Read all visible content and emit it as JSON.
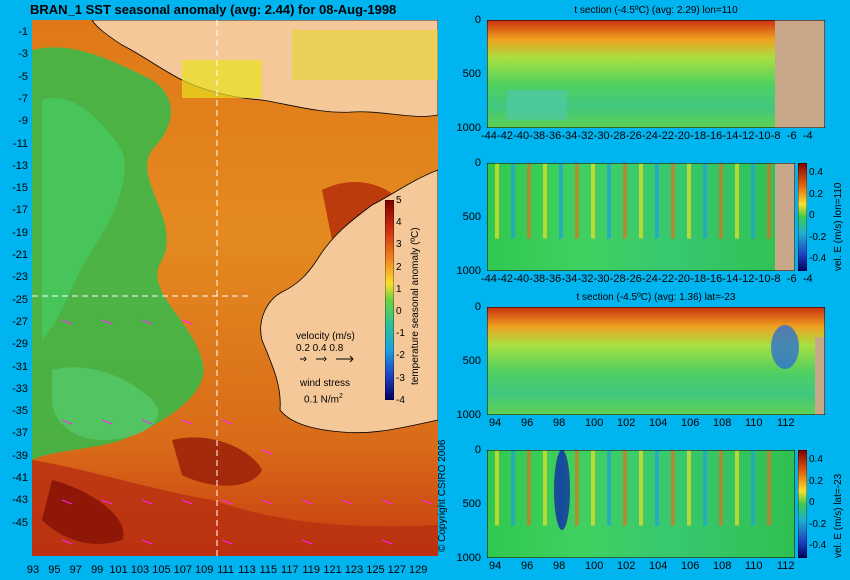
{
  "map": {
    "title": "BRAN_1  SST seasonal anomaly  (avg: 2.44) for 08-Aug-1998",
    "lat_labels": [
      "-1",
      "-3",
      "-5",
      "-7",
      "-9",
      "-11",
      "-13",
      "-15",
      "-17",
      "-19",
      "-21",
      "-23",
      "-25",
      "-27",
      "-29",
      "-31",
      "-33",
      "-35",
      "-37",
      "-39",
      "-41",
      "-43",
      "-45"
    ],
    "lon_labels": [
      "93",
      "95",
      "97",
      "99",
      "101",
      "103",
      "105",
      "107",
      "109",
      "111",
      "113",
      "115",
      "117",
      "119",
      "121",
      "123",
      "125",
      "127",
      "129"
    ],
    "colorbar": {
      "ticks": [
        "5",
        "4",
        "3",
        "2",
        "1",
        "0",
        "-1",
        "-2",
        "-3",
        "-4"
      ],
      "label": "temperature seasonal anomaly (ºC)"
    },
    "legend": {
      "velocity_title": "velocity (m/s)",
      "velocity_values": "0.2 0.4 0.8",
      "wind_title": "wind stress",
      "wind_value": "0.1 N/m",
      "wind_sup": "2"
    },
    "copyright": "© Copyright CSIRO 2006",
    "colors": {
      "land": "#f5c89a",
      "background": "#00b4f0",
      "warm": "#d05a10",
      "cool": "#3cc850"
    }
  },
  "panels": [
    {
      "title": "t section (-4.5ºC) (avg: 2.29) lon=110",
      "y_ticks": [
        "0",
        "500",
        "1000"
      ],
      "x_ticks": [
        "-44",
        "-42",
        "-40",
        "-38",
        "-36",
        "-34",
        "-32",
        "-30",
        "-28",
        "-26",
        "-24",
        "-22",
        "-20",
        "-18",
        "-16",
        "-14",
        "-12",
        "-10",
        "-8",
        "-6",
        "-4"
      ]
    },
    {
      "title": "",
      "y_ticks": [
        "0",
        "500",
        "1000"
      ],
      "x_ticks": [
        "-44",
        "-42",
        "-40",
        "-38",
        "-36",
        "-34",
        "-32",
        "-30",
        "-28",
        "-26",
        "-24",
        "-22",
        "-20",
        "-18",
        "-16",
        "-14",
        "-12",
        "-10",
        "-8",
        "-6",
        "-4"
      ],
      "cbar_ticks": [
        "0.4",
        "0.2",
        "0",
        "-0.2",
        "-0.4"
      ],
      "cbar_label": "vel. E (m/s) lon=110"
    },
    {
      "title": "t section (-4.5ºC) (avg: 1.36) lat=-23",
      "y_ticks": [
        "0",
        "500",
        "1000"
      ],
      "x_ticks": [
        "94",
        "96",
        "98",
        "100",
        "102",
        "104",
        "106",
        "108",
        "110",
        "112"
      ]
    },
    {
      "title": "",
      "y_ticks": [
        "0",
        "500",
        "1000"
      ],
      "x_ticks": [
        "94",
        "96",
        "98",
        "100",
        "102",
        "104",
        "106",
        "108",
        "110",
        "112"
      ],
      "cbar_ticks": [
        "0.4",
        "0.2",
        "0",
        "-0.2",
        "-0.4"
      ],
      "cbar_label": "vel. E (m/s) lat=-23"
    }
  ]
}
